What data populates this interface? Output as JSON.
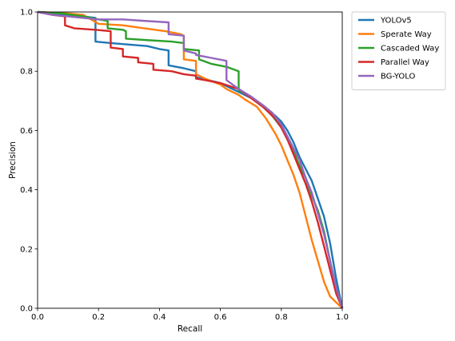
{
  "chart_data": {
    "type": "line",
    "title": "",
    "xlabel": "Recall",
    "ylabel": "Precision",
    "xlim": [
      0,
      1
    ],
    "ylim": [
      0,
      1
    ],
    "xticks": [
      "0.0",
      "0.2",
      "0.4",
      "0.6",
      "0.8",
      "1.0"
    ],
    "yticks": [
      "0.0",
      "0.2",
      "0.4",
      "0.6",
      "0.8",
      "1.0"
    ],
    "grid": false,
    "legend_position": "outside-top-right",
    "series": [
      {
        "name": "YOLOv5",
        "color": "#1f77b4",
        "points": [
          [
            0,
            1.0
          ],
          [
            0.05,
            0.995
          ],
          [
            0.1,
            0.99
          ],
          [
            0.15,
            0.985
          ],
          [
            0.19,
            0.98
          ],
          [
            0.19,
            0.9
          ],
          [
            0.24,
            0.895
          ],
          [
            0.3,
            0.89
          ],
          [
            0.36,
            0.885
          ],
          [
            0.4,
            0.875
          ],
          [
            0.43,
            0.87
          ],
          [
            0.43,
            0.82
          ],
          [
            0.48,
            0.81
          ],
          [
            0.52,
            0.8
          ],
          [
            0.52,
            0.78
          ],
          [
            0.6,
            0.76
          ],
          [
            0.66,
            0.73
          ],
          [
            0.7,
            0.71
          ],
          [
            0.74,
            0.68
          ],
          [
            0.78,
            0.65
          ],
          [
            0.8,
            0.63
          ],
          [
            0.82,
            0.6
          ],
          [
            0.84,
            0.56
          ],
          [
            0.86,
            0.51
          ],
          [
            0.88,
            0.47
          ],
          [
            0.9,
            0.43
          ],
          [
            0.92,
            0.37
          ],
          [
            0.94,
            0.31
          ],
          [
            0.96,
            0.22
          ],
          [
            0.98,
            0.1
          ],
          [
            1.0,
            0.0
          ]
        ]
      },
      {
        "name": "Sperate Way",
        "color": "#ff7f0e",
        "points": [
          [
            0,
            1.0
          ],
          [
            0.1,
            0.995
          ],
          [
            0.15,
            0.99
          ],
          [
            0.2,
            0.96
          ],
          [
            0.28,
            0.955
          ],
          [
            0.35,
            0.945
          ],
          [
            0.42,
            0.935
          ],
          [
            0.47,
            0.925
          ],
          [
            0.48,
            0.92
          ],
          [
            0.48,
            0.84
          ],
          [
            0.52,
            0.835
          ],
          [
            0.52,
            0.79
          ],
          [
            0.55,
            0.775
          ],
          [
            0.6,
            0.755
          ],
          [
            0.62,
            0.74
          ],
          [
            0.66,
            0.72
          ],
          [
            0.68,
            0.705
          ],
          [
            0.72,
            0.68
          ],
          [
            0.75,
            0.64
          ],
          [
            0.78,
            0.59
          ],
          [
            0.8,
            0.55
          ],
          [
            0.82,
            0.5
          ],
          [
            0.84,
            0.45
          ],
          [
            0.86,
            0.39
          ],
          [
            0.88,
            0.31
          ],
          [
            0.9,
            0.23
          ],
          [
            0.92,
            0.16
          ],
          [
            0.94,
            0.09
          ],
          [
            0.96,
            0.04
          ],
          [
            0.98,
            0.02
          ],
          [
            1.0,
            0.0
          ]
        ]
      },
      {
        "name": "Cascaded Way",
        "color": "#2ca02c",
        "points": [
          [
            0,
            1.0
          ],
          [
            0.08,
            0.995
          ],
          [
            0.15,
            0.985
          ],
          [
            0.2,
            0.975
          ],
          [
            0.23,
            0.97
          ],
          [
            0.23,
            0.945
          ],
          [
            0.28,
            0.94
          ],
          [
            0.29,
            0.935
          ],
          [
            0.29,
            0.91
          ],
          [
            0.36,
            0.905
          ],
          [
            0.44,
            0.9
          ],
          [
            0.48,
            0.895
          ],
          [
            0.48,
            0.875
          ],
          [
            0.53,
            0.87
          ],
          [
            0.53,
            0.84
          ],
          [
            0.57,
            0.825
          ],
          [
            0.62,
            0.815
          ],
          [
            0.66,
            0.8
          ],
          [
            0.66,
            0.735
          ],
          [
            0.7,
            0.715
          ],
          [
            0.74,
            0.68
          ],
          [
            0.77,
            0.65
          ],
          [
            0.8,
            0.61
          ],
          [
            0.82,
            0.57
          ],
          [
            0.84,
            0.53
          ],
          [
            0.86,
            0.48
          ],
          [
            0.88,
            0.44
          ],
          [
            0.9,
            0.38
          ],
          [
            0.92,
            0.33
          ],
          [
            0.94,
            0.26
          ],
          [
            0.96,
            0.16
          ],
          [
            0.98,
            0.07
          ],
          [
            1.0,
            0.0
          ]
        ]
      },
      {
        "name": "Parallel Way",
        "color": "#d62728",
        "points": [
          [
            0,
            1.0
          ],
          [
            0.05,
            0.99
          ],
          [
            0.09,
            0.985
          ],
          [
            0.09,
            0.955
          ],
          [
            0.12,
            0.945
          ],
          [
            0.19,
            0.94
          ],
          [
            0.24,
            0.935
          ],
          [
            0.24,
            0.88
          ],
          [
            0.28,
            0.875
          ],
          [
            0.28,
            0.85
          ],
          [
            0.33,
            0.845
          ],
          [
            0.33,
            0.83
          ],
          [
            0.38,
            0.825
          ],
          [
            0.38,
            0.805
          ],
          [
            0.44,
            0.8
          ],
          [
            0.48,
            0.79
          ],
          [
            0.52,
            0.785
          ],
          [
            0.52,
            0.775
          ],
          [
            0.55,
            0.77
          ],
          [
            0.6,
            0.76
          ],
          [
            0.66,
            0.74
          ],
          [
            0.7,
            0.71
          ],
          [
            0.74,
            0.68
          ],
          [
            0.78,
            0.64
          ],
          [
            0.8,
            0.61
          ],
          [
            0.82,
            0.57
          ],
          [
            0.84,
            0.52
          ],
          [
            0.86,
            0.47
          ],
          [
            0.88,
            0.42
          ],
          [
            0.9,
            0.36
          ],
          [
            0.92,
            0.29
          ],
          [
            0.94,
            0.21
          ],
          [
            0.96,
            0.13
          ],
          [
            0.98,
            0.05
          ],
          [
            1.0,
            0.0
          ]
        ]
      },
      {
        "name": "BG-YOLO",
        "color": "#9467bd",
        "points": [
          [
            0,
            1.0
          ],
          [
            0.05,
            0.99
          ],
          [
            0.1,
            0.985
          ],
          [
            0.15,
            0.98
          ],
          [
            0.2,
            0.975
          ],
          [
            0.28,
            0.975
          ],
          [
            0.35,
            0.97
          ],
          [
            0.43,
            0.965
          ],
          [
            0.43,
            0.925
          ],
          [
            0.48,
            0.92
          ],
          [
            0.48,
            0.87
          ],
          [
            0.52,
            0.86
          ],
          [
            0.52,
            0.855
          ],
          [
            0.57,
            0.845
          ],
          [
            0.62,
            0.835
          ],
          [
            0.62,
            0.77
          ],
          [
            0.66,
            0.74
          ],
          [
            0.7,
            0.715
          ],
          [
            0.74,
            0.685
          ],
          [
            0.77,
            0.66
          ],
          [
            0.8,
            0.62
          ],
          [
            0.82,
            0.58
          ],
          [
            0.84,
            0.54
          ],
          [
            0.86,
            0.5
          ],
          [
            0.88,
            0.44
          ],
          [
            0.9,
            0.39
          ],
          [
            0.92,
            0.32
          ],
          [
            0.94,
            0.25
          ],
          [
            0.96,
            0.16
          ],
          [
            0.98,
            0.07
          ],
          [
            1.0,
            0.0
          ]
        ]
      }
    ]
  }
}
